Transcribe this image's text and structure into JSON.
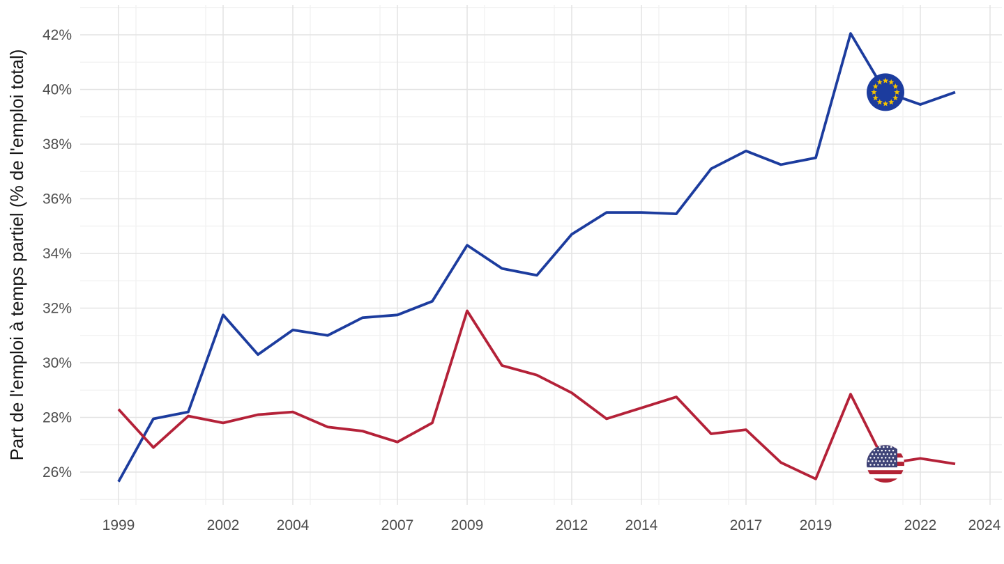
{
  "chart_data": {
    "type": "line",
    "title": "",
    "xlabel": "",
    "ylabel": "Part de l'emploi à temps partiel (% de l'emploi total)",
    "x": [
      1999,
      2000,
      2001,
      2002,
      2003,
      2004,
      2005,
      2006,
      2007,
      2008,
      2009,
      2010,
      2011,
      2012,
      2013,
      2014,
      2015,
      2016,
      2017,
      2018,
      2019,
      2020,
      2021,
      2022,
      2023
    ],
    "series": [
      {
        "id": "eu",
        "name": "Union européenne",
        "color": "#1c3c9e",
        "flag": "eu-flag-icon",
        "flag_year": 2021,
        "values": [
          25.65,
          27.95,
          28.2,
          31.75,
          30.3,
          31.2,
          31.0,
          31.65,
          31.75,
          32.25,
          34.3,
          33.45,
          33.2,
          34.7,
          35.5,
          35.5,
          35.45,
          37.1,
          37.75,
          37.25,
          37.5,
          42.05,
          39.9,
          39.45,
          39.9
        ]
      },
      {
        "id": "us",
        "name": "États-Unis",
        "color": "#b42138",
        "flag": "us-flag-icon",
        "flag_year": 2021,
        "values": [
          28.3,
          26.9,
          28.05,
          27.8,
          28.1,
          28.2,
          27.65,
          27.5,
          27.1,
          27.8,
          31.9,
          29.9,
          29.55,
          28.9,
          27.95,
          28.35,
          28.75,
          27.4,
          27.55,
          26.35,
          25.75,
          28.85,
          26.3,
          26.5,
          26.3
        ]
      }
    ],
    "x_major_ticks": [
      1999,
      2002,
      2004,
      2007,
      2009,
      2012,
      2014,
      2017,
      2019,
      2022,
      2024
    ],
    "x_tick_labels": [
      "1999",
      "2002",
      "2004",
      "2007",
      "2009",
      "2012",
      "2014",
      "2017",
      "2019",
      "2022",
      "2024"
    ],
    "x_minor_ticks": [
      1999.5,
      2001.5,
      2004.5,
      2006.5,
      2009.5,
      2011.5,
      2014.5,
      2016.5,
      2019.5,
      2021.5
    ],
    "y_major_ticks": [
      26,
      28,
      30,
      32,
      34,
      36,
      38,
      40,
      42
    ],
    "y_tick_labels": [
      "26%",
      "28%",
      "30%",
      "32%",
      "34%",
      "36%",
      "38%",
      "40%",
      "42%"
    ],
    "y_minor_ticks": [
      25,
      27,
      29,
      31,
      33,
      35,
      37,
      39,
      41,
      43
    ],
    "ylim": [
      24.75,
      43.1
    ],
    "xlim": [
      1997.9,
      2024.35
    ],
    "grid": true,
    "legend": "none"
  },
  "colors": {
    "background": "#ffffff",
    "grid_major": "#e4e4e4",
    "grid_minor": "#f1f1f1",
    "tick_label": "#4d4d4d",
    "axis_title": "#161616",
    "eu_line": "#1c3c9e",
    "us_line": "#b42138",
    "eu_flag_blue": "#1c3c9e",
    "eu_star_gold": "#f5c300",
    "us_canton_blue": "#3e4377",
    "us_stripe_red": "#b22234",
    "us_stripe_white": "#ffffff"
  }
}
